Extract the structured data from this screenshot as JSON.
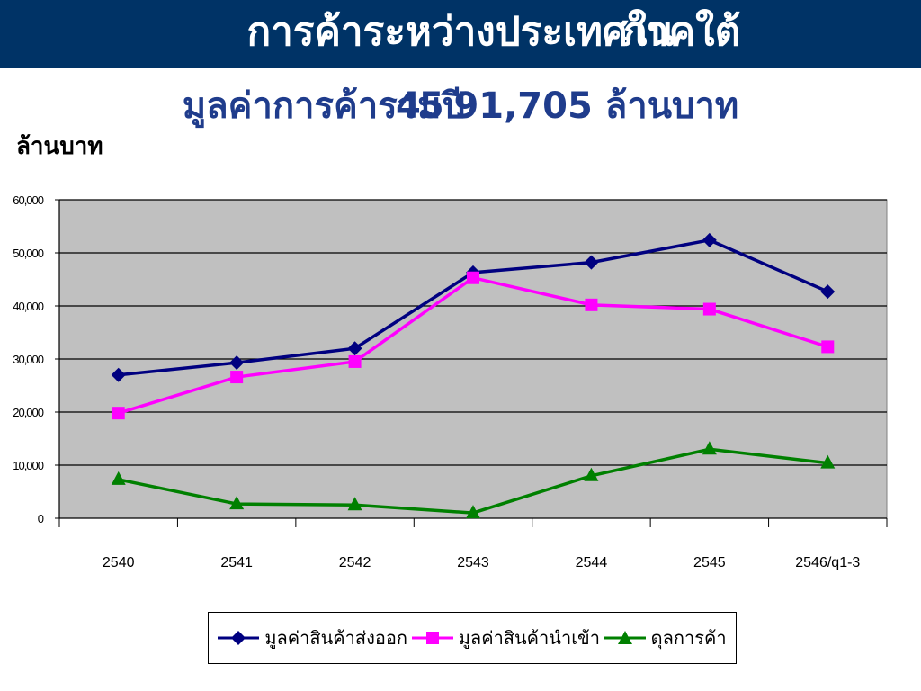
{
  "header": {
    "title": "การค้าระหว่างประเทศใน",
    "title_overlay": "ภาคใต้"
  },
  "subtitle": {
    "text": "มูลค่าการค้ารวม 91,705 ล้านบาท",
    "overlay": "45ปี"
  },
  "unit_label": "ล้านบาท",
  "colors": {
    "header_bg": "#003366",
    "plot_bg": "#c0c0c0",
    "export": "#000080",
    "import": "#ff00ff",
    "balance": "#008000"
  },
  "chart_data": {
    "type": "line",
    "categories": [
      "2540",
      "2541",
      "2542",
      "2543",
      "2544",
      "2545",
      "2546/q1-3"
    ],
    "ylim": [
      0,
      60000
    ],
    "yticks": [
      "0",
      "10,000",
      "20,000",
      "30,000",
      "40,000",
      "50,000",
      "60,000"
    ],
    "grid": true,
    "legend_position": "bottom",
    "series": [
      {
        "name": "มูลค่าสินค้าส่งออก",
        "marker": "diamond",
        "values": [
          27000,
          29300,
          32000,
          46300,
          48200,
          52400,
          42700
        ]
      },
      {
        "name": "มูลค่าสินค้านำเข้า",
        "marker": "square",
        "values": [
          19800,
          26600,
          29500,
          45300,
          40200,
          39400,
          32300
        ]
      },
      {
        "name": "ดุลการค้า",
        "marker": "triangle",
        "values": [
          7300,
          2700,
          2500,
          1000,
          8000,
          13000,
          10400
        ]
      }
    ]
  }
}
